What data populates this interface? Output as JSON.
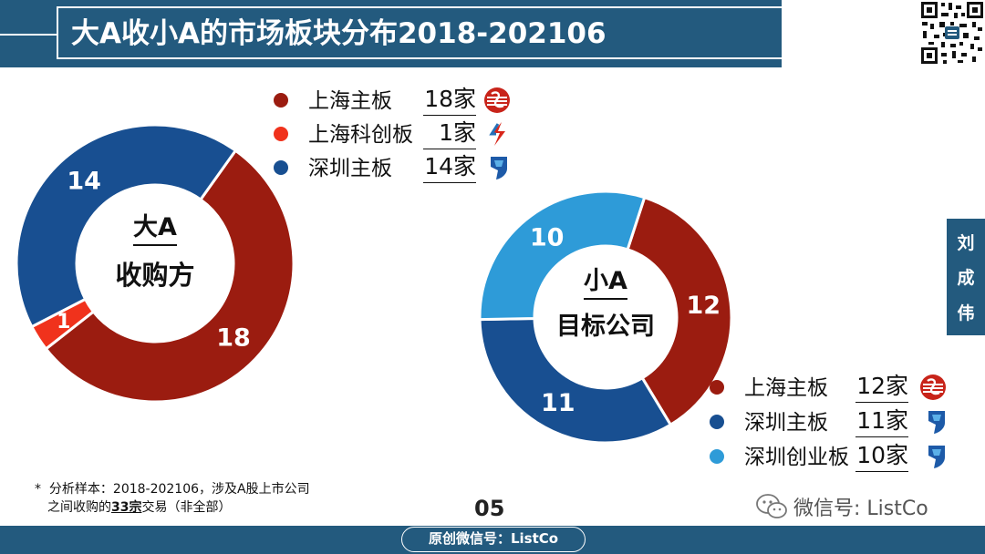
{
  "header": {
    "title": "大A收小A的市场板块分布2018-202106"
  },
  "side_tab": {
    "chars": [
      "刘",
      "成",
      "伟"
    ]
  },
  "colors": {
    "shanghai_main": "#9b1c10",
    "shanghai_star": "#f0321c",
    "shenzhen_main": "#184f91",
    "shenzhen_growth": "#2e9bd8",
    "brand": "#235a7e"
  },
  "chart_data": [
    {
      "type": "pie",
      "variant": "donut",
      "center_label_top": "大A",
      "center_label_bottom": "收购方",
      "slices": [
        {
          "label": "上海主板",
          "value": 18,
          "count_text": "18家",
          "color": "#9b1c10",
          "logo": "sse-logo-icon"
        },
        {
          "label": "上海科创板",
          "value": 1,
          "count_text": "1家",
          "color": "#f0321c",
          "logo": "star-market-logo-icon"
        },
        {
          "label": "深圳主板",
          "value": 14,
          "count_text": "14家",
          "color": "#184f91",
          "logo": "szse-logo-icon"
        }
      ]
    },
    {
      "type": "pie",
      "variant": "donut",
      "center_label_top": "小A",
      "center_label_bottom": "目标公司",
      "slices": [
        {
          "label": "上海主板",
          "value": 12,
          "count_text": "12家",
          "color": "#9b1c10",
          "logo": "sse-logo-icon"
        },
        {
          "label": "深圳主板",
          "value": 11,
          "count_text": "11家",
          "color": "#184f91",
          "logo": "szse-logo-icon"
        },
        {
          "label": "深圳创业板",
          "value": 10,
          "count_text": "10家",
          "color": "#2e9bd8",
          "logo": "szse-logo-icon"
        }
      ]
    }
  ],
  "footnote": {
    "star": "*",
    "line1": "分析样本：2018-202106，涉及A股上市公司",
    "line2_pre": "之间收购的",
    "line2_bold": "33宗",
    "line2_post": "交易（非全部）"
  },
  "page_number": "05",
  "watermark": {
    "text": "微信号: ListCo",
    "icon": "wechat-icon"
  },
  "bottom_pill": {
    "text": "原创微信号：ListCo"
  }
}
